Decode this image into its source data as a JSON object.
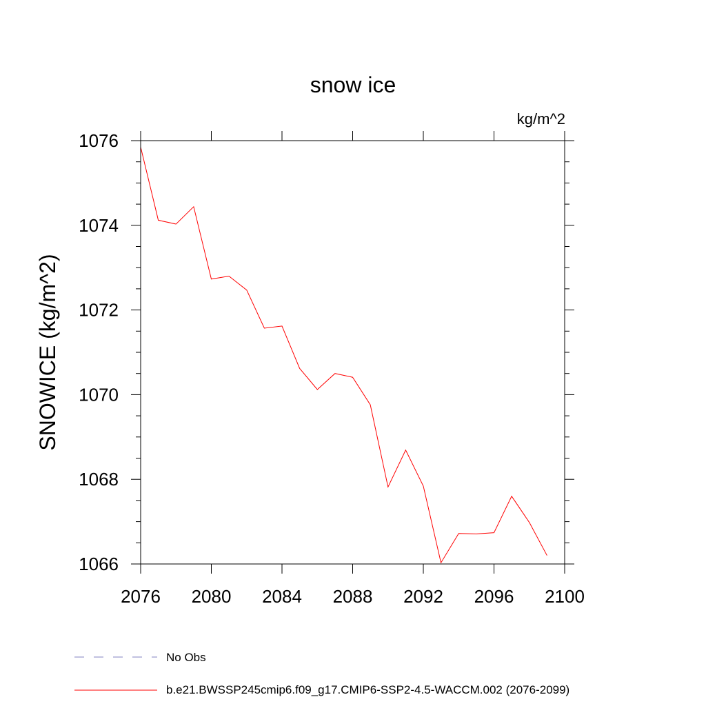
{
  "chart_data": {
    "type": "line",
    "title": "snow ice",
    "units": "kg/m^2",
    "ylabel": "SNOWICE  (kg/m^2)",
    "xlabel": "",
    "xlim": [
      2076,
      2100
    ],
    "ylim": [
      1066,
      1076
    ],
    "x_ticks": [
      "2076",
      "2080",
      "2084",
      "2088",
      "2092",
      "2096",
      "2100"
    ],
    "y_ticks": [
      "1066",
      "1068",
      "1070",
      "1072",
      "1074",
      "1076"
    ],
    "x_tick_values": [
      2076,
      2080,
      2084,
      2088,
      2092,
      2096,
      2100
    ],
    "y_tick_values": [
      1066,
      1068,
      1070,
      1072,
      1074,
      1076
    ],
    "grid": false,
    "legend_position": "bottom",
    "series": [
      {
        "name": "b.e21.BWSSP245cmip6.f09_g17.CMIP6-SSP2-4.5-WACCM.002 (2076-2099)",
        "color": "#ff0000",
        "x": [
          2076,
          2077,
          2078,
          2079,
          2080,
          2081,
          2082,
          2083,
          2084,
          2085,
          2086,
          2087,
          2088,
          2089,
          2090,
          2091,
          2092,
          2093,
          2094,
          2095,
          2096,
          2097,
          2098,
          2099
        ],
        "values": [
          1075.85,
          1074.12,
          1074.03,
          1074.44,
          1072.73,
          1072.8,
          1072.47,
          1071.57,
          1071.62,
          1070.62,
          1070.12,
          1070.5,
          1070.41,
          1069.76,
          1067.82,
          1068.69,
          1067.84,
          1066.03,
          1066.72,
          1066.71,
          1066.74,
          1067.6,
          1066.98,
          1066.2
        ]
      }
    ],
    "legend": [
      {
        "label": "No Obs",
        "color": "#8080c0",
        "style": "dashed"
      },
      {
        "label": "b.e21.BWSSP245cmip6.f09_g17.CMIP6-SSP2-4.5-WACCM.002 (2076-2099)",
        "color": "#ff0000",
        "style": "solid"
      }
    ]
  }
}
